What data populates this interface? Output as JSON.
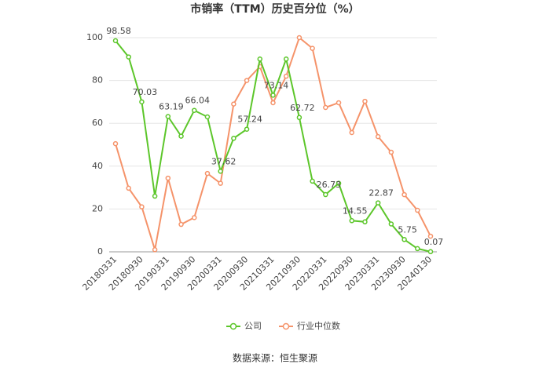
{
  "chart_data": {
    "type": "line",
    "title": "市销率（TTM）历史百分位（%）",
    "categories": [
      "20180331",
      null,
      "20180930",
      null,
      "20190331",
      null,
      "20190930",
      null,
      "20200331",
      null,
      "20200930",
      null,
      "20210331",
      null,
      "20210930",
      null,
      "20220331",
      null,
      "20220930",
      null,
      "20230331",
      null,
      "20230930",
      null,
      "20240130"
    ],
    "series": [
      {
        "name": "公司",
        "color": "#5cc62a",
        "values": [
          98.58,
          91,
          70.03,
          26,
          63.19,
          54,
          66.04,
          63,
          37.62,
          53,
          57.24,
          90,
          73.14,
          90,
          62.72,
          33,
          26.73,
          32,
          14.55,
          14,
          22.87,
          13,
          5.75,
          1.5,
          0.07
        ],
        "value_labels": [
          "98.58",
          null,
          "70.03",
          null,
          "63.19",
          null,
          "66.04",
          null,
          "37.62",
          null,
          "57.24",
          null,
          "73.14",
          null,
          "62.72",
          null,
          "26.73",
          null,
          "14.55",
          null,
          "22.87",
          null,
          "5.75",
          null,
          "0.07"
        ]
      },
      {
        "name": "行业中位数",
        "color": "#f5936a",
        "values": [
          50.5,
          29.7,
          21,
          1,
          34.4,
          12.8,
          16,
          36.6,
          32,
          69,
          80,
          86.5,
          69.6,
          82,
          100,
          95,
          67.4,
          69.6,
          55.7,
          70.3,
          53.8,
          46.5,
          26.7,
          19.4,
          7.3
        ]
      }
    ],
    "ylim": [
      0,
      100
    ],
    "yticks": [
      0,
      20,
      40,
      60,
      80,
      100
    ],
    "grid": true,
    "source": "数据来源：恒生聚源"
  }
}
